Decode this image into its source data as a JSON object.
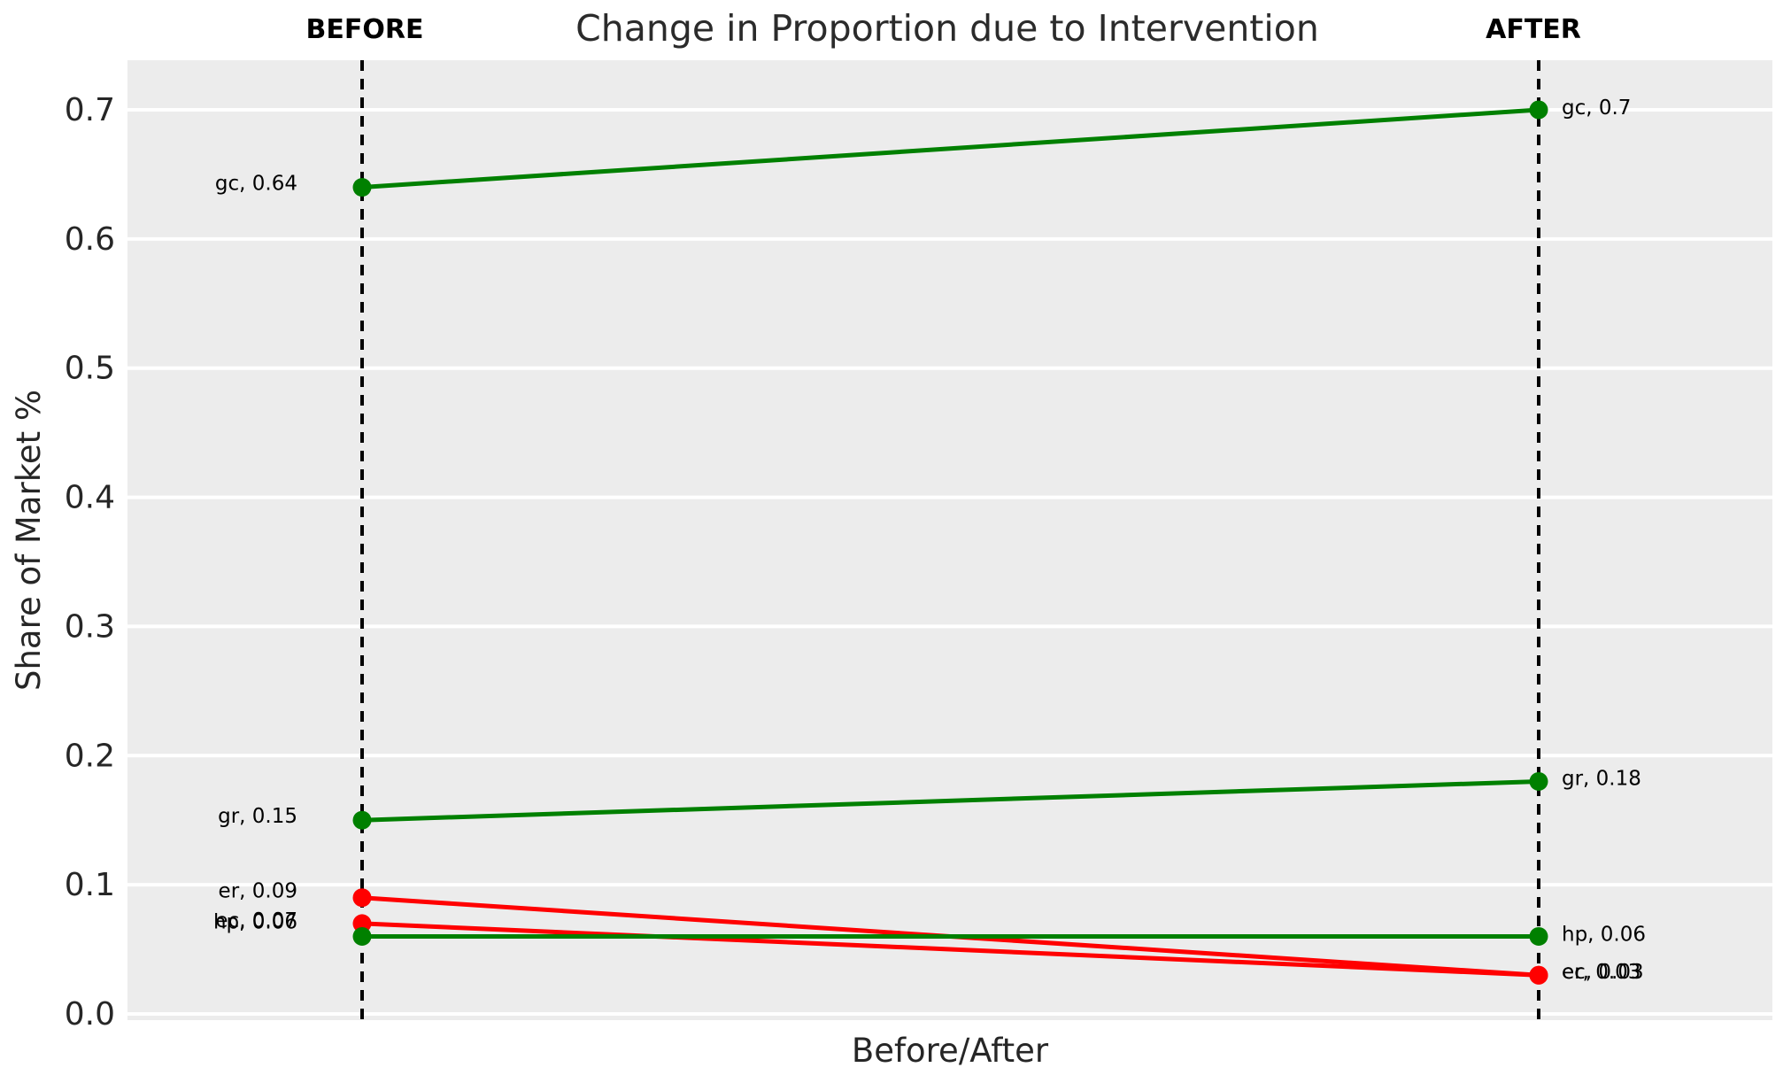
{
  "figure": {
    "title": "Change in Proportion due to Intervention",
    "column_headers": {
      "before": "BEFORE",
      "after": "AFTER"
    },
    "xlabel": "Before/After",
    "ylabel": "Share of Market %",
    "colors": {
      "plot_background": "#ececec",
      "gridline": "#ffffff",
      "column_rule": "#000000",
      "increase": "#008000",
      "decrease": "#ff0000",
      "text": "#262626",
      "label_text": "#000000"
    }
  },
  "chart_data": {
    "type": "line",
    "subtype": "slopegraph",
    "title": "Change in Proportion due to Intervention",
    "xlabel": "Before/After",
    "ylabel": "Share of Market %",
    "columns": [
      "BEFORE",
      "AFTER"
    ],
    "grid": true,
    "ylim": [
      -0.005,
      0.739
    ],
    "yticks": [
      0.0,
      0.1,
      0.2,
      0.3,
      0.4,
      0.5,
      0.6,
      0.7
    ],
    "ytick_labels": [
      "0.0",
      "0.1",
      "0.2",
      "0.3",
      "0.4",
      "0.5",
      "0.6",
      "0.7"
    ],
    "series": [
      {
        "name": "gc",
        "before": 0.64,
        "after": 0.7,
        "color": "#008000",
        "before_label": "gc, 0.64",
        "after_label": "gc, 0.7",
        "label_dy_before": -5,
        "label_dy_after": -3
      },
      {
        "name": "gr",
        "before": 0.15,
        "after": 0.18,
        "color": "#008000",
        "before_label": "gr, 0.15",
        "after_label": "gr, 0.18",
        "label_dy_before": -5,
        "label_dy_after": -4
      },
      {
        "name": "er",
        "before": 0.09,
        "after": 0.03,
        "color": "#ff0000",
        "before_label": "er, 0.09",
        "after_label": "er, 0.03",
        "label_dy_before": -8,
        "label_dy_after": -4
      },
      {
        "name": "ec",
        "before": 0.07,
        "after": 0.03,
        "color": "#ff0000",
        "before_label": "ec, 0.07",
        "after_label": "ec, 0.03",
        "label_dy_before": -4,
        "label_dy_after": -4
      },
      {
        "name": "hp",
        "before": 0.06,
        "after": 0.06,
        "color": "#008000",
        "before_label": "hp, 0.06",
        "after_label": "hp, 0.06",
        "label_dy_before": -17,
        "label_dy_after": -3
      }
    ]
  }
}
